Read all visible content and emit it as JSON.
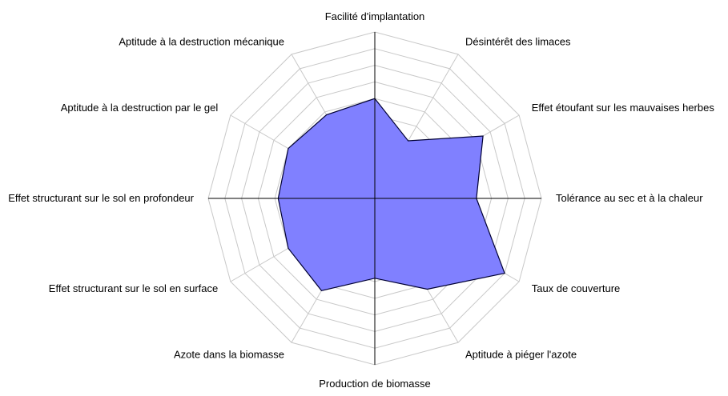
{
  "chart_data": {
    "type": "radar",
    "title": "",
    "categories": [
      "Facilité d'implantation",
      "Désintérêt des limaces",
      "Effet étoufant sur les mauvaises herbes",
      "Tolérance au sec et à la chaleur",
      "Taux de couverture",
      "Aptitude à piéger l'azote",
      "Production de biomasse",
      "Azote dans la biomasse",
      "Effet structurant sur le sol en surface",
      "Effet structurant sur le sol en profondeur",
      "Aptitude à la destruction par le gel",
      "Aptitude à la destruction mécanique"
    ],
    "series": [
      {
        "values": [
          6,
          4,
          7.5,
          6.1,
          9,
          6.3,
          4.8,
          6.4,
          6,
          5.8,
          6,
          5.8
        ]
      }
    ],
    "rlim": [
      0,
      10
    ],
    "grid_rings": 10,
    "grid": true,
    "fill_color": "#8080ff",
    "line_color": "#000033"
  }
}
